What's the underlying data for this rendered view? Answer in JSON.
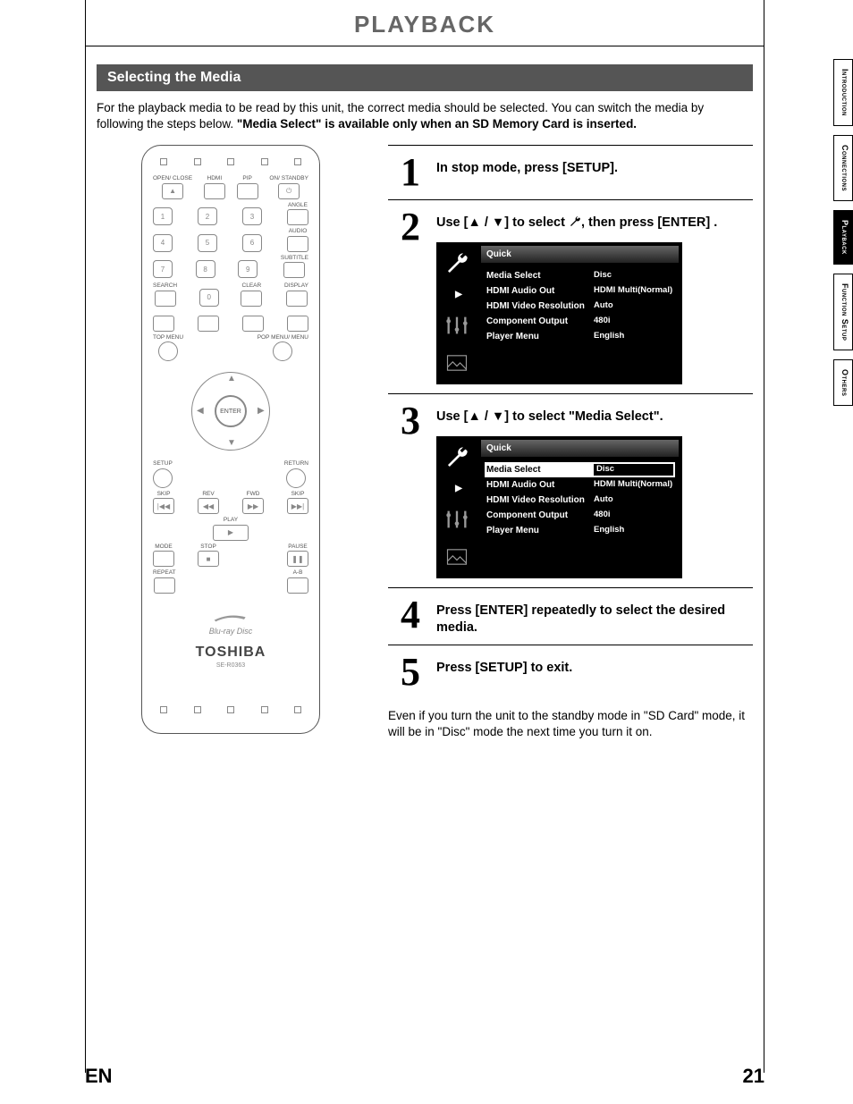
{
  "page": {
    "title": "PLAYBACK",
    "section_head": "Selecting the Media",
    "intro_plain": "For the playback media to be read by this unit, the correct media should be selected. You can switch the media by following the steps below.  ",
    "intro_bold": "\"Media Select\" is available only when an SD Memory Card is inserted.",
    "footer_lang": "EN",
    "footer_page": "21"
  },
  "tabs": [
    {
      "label": "Introduction",
      "active": false
    },
    {
      "label": "Connections",
      "active": false
    },
    {
      "label": "Playback",
      "active": true
    },
    {
      "label": "Function Setup",
      "active": false
    },
    {
      "label": "Others",
      "active": false
    }
  ],
  "steps": [
    {
      "n": "1",
      "text": "In stop mode, press [SETUP]."
    },
    {
      "n": "2",
      "pre": "Use [",
      "arrows": "▲ / ▼",
      "post": "] to select ",
      "icon": "wrench",
      "tail": ", then press [ENTER] ."
    },
    {
      "n": "3",
      "pre": "Use [",
      "arrows": "▲ / ▼",
      "post": "] to select \"Media Select\"."
    },
    {
      "n": "4",
      "text": "Press [ENTER] repeatedly to select the desired media."
    },
    {
      "n": "5",
      "text": "Press [SETUP] to exit."
    }
  ],
  "note": "Even if you turn the unit to the standby mode in \"SD Card\" mode, it will be in \"Disc\" mode the next time you turn it on.",
  "osd": {
    "tab": "Quick",
    "rows": [
      {
        "label": "Media Select",
        "value": "Disc"
      },
      {
        "label": "HDMI Audio Out",
        "value": "HDMI Multi(Normal)"
      },
      {
        "label": "HDMI Video Resolution",
        "value": "Auto"
      },
      {
        "label": "Component Output",
        "value": "480i"
      },
      {
        "label": "Player Menu",
        "value": "English"
      }
    ],
    "selected_index_step2": -1,
    "selected_index_step3": 0
  },
  "remote": {
    "top_labels": [
      "OPEN/\nCLOSE",
      "HDMI",
      "PIP",
      "ON/\nSTANDBY"
    ],
    "row2_side": "ANGLE",
    "numpad": [
      [
        "1",
        "2",
        "3"
      ],
      [
        "4",
        "5",
        "6"
      ],
      [
        "7",
        "8",
        "9"
      ]
    ],
    "side_labels": [
      "AUDIO",
      "SUBTITLE"
    ],
    "under_num": [
      "SEARCH",
      "",
      "CLEAR",
      "DISPLAY"
    ],
    "zero": "0",
    "nav": {
      "top": "TOP MENU",
      "pop": "POP MENU/\nMENU",
      "setup": "SETUP",
      "return": "RETURN",
      "enter": "ENTER"
    },
    "transport": {
      "row1": [
        "SKIP",
        "REV",
        "FWD",
        "SKIP"
      ],
      "row1_sym": [
        "|◀◀",
        "◀◀",
        "▶▶",
        "▶▶|"
      ],
      "play": "PLAY",
      "row2": [
        "MODE",
        "STOP",
        "",
        "PAUSE"
      ],
      "row2_sym": [
        "",
        "■",
        "",
        "❚❚"
      ],
      "row3": [
        "REPEAT",
        "",
        "",
        "A-B"
      ]
    },
    "brand": "TOSHIBA",
    "model": "SE-R0363",
    "bd": "Blu-ray Disc"
  },
  "colors": {
    "title": "#666666",
    "section_bg": "#555555",
    "osd_bg": "#000000",
    "osd_tab_top": "#666666",
    "text": "#000000"
  }
}
